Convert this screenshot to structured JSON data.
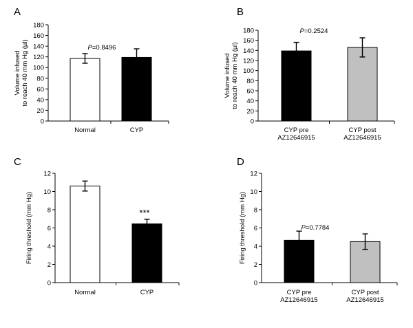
{
  "chart_data": [
    {
      "panel": "A",
      "type": "bar",
      "categories": [
        "Normal",
        "CYP"
      ],
      "values": [
        117,
        119
      ],
      "errors": [
        9,
        16
      ],
      "fills": [
        "#ffffff",
        "#000000"
      ],
      "ylabel": "Volume infused\nto reach 40 mm Hg (µl)",
      "ylim": [
        0,
        180
      ],
      "yticks": [
        "0",
        "20",
        "40",
        "60",
        "80",
        "100",
        "120",
        "140",
        "160",
        "180"
      ],
      "annotation": {
        "italic": "P",
        "rest": "=0.8496"
      },
      "grid": false
    },
    {
      "panel": "B",
      "type": "bar",
      "categories": [
        "CYP pre\nAZ12646915",
        "CYP post\nAZ12646915"
      ],
      "values": [
        139,
        146
      ],
      "errors": [
        17,
        19
      ],
      "fills": [
        "#000000",
        "#c0c0c0"
      ],
      "ylabel": "Volume infused\nto reach 40 mm Hg (µl)",
      "ylim": [
        0,
        180
      ],
      "yticks": [
        "0",
        "20",
        "40",
        "60",
        "80",
        "100",
        "120",
        "140",
        "160",
        "180"
      ],
      "annotation": {
        "italic": "P",
        "rest": "=0.2524"
      },
      "grid": false
    },
    {
      "panel": "C",
      "type": "bar",
      "categories": [
        "Normal",
        "CYP"
      ],
      "values": [
        10.6,
        6.45
      ],
      "errors": [
        0.55,
        0.5
      ],
      "fills": [
        "#ffffff",
        "#000000"
      ],
      "ylabel": "Firing threshold (mm Hg)",
      "ylim": [
        0,
        12
      ],
      "yticks": [
        "0",
        "2",
        "4",
        "6",
        "8",
        "10",
        "12"
      ],
      "annotation": {
        "italic": "",
        "rest": "***"
      },
      "grid": false
    },
    {
      "panel": "D",
      "type": "bar",
      "categories": [
        "CYP pre\nAZ12646915",
        "CYP post\nAZ12646915"
      ],
      "values": [
        4.65,
        4.5
      ],
      "errors": [
        1.0,
        0.85
      ],
      "fills": [
        "#000000",
        "#c0c0c0"
      ],
      "ylabel": "Firing threshold (mm Hg)",
      "ylim": [
        0,
        12
      ],
      "yticks": [
        "0",
        "2",
        "4",
        "6",
        "8",
        "10",
        "12"
      ],
      "annotation": {
        "italic": "P",
        "rest": "=0.7784"
      },
      "grid": false
    }
  ]
}
